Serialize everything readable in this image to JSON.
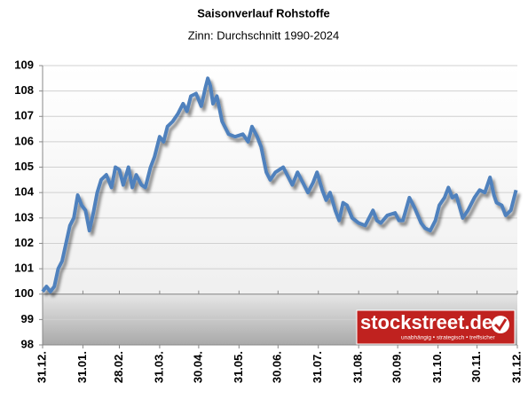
{
  "chart_data": {
    "type": "line",
    "title": "Saisonverlauf Rohstoffe",
    "subtitle": "Zinn: Durchschnitt 1990-2024",
    "x": [
      0,
      3,
      6,
      9,
      12,
      15,
      18,
      21,
      24,
      27,
      30,
      33,
      36,
      39,
      42,
      45,
      49,
      53,
      56,
      59,
      62,
      66,
      69,
      72,
      76,
      79,
      83,
      86,
      90,
      93,
      96,
      100,
      104,
      108,
      111,
      114,
      118,
      122,
      125,
      127,
      129,
      131,
      134,
      138,
      143,
      148,
      154,
      158,
      161,
      165,
      168,
      172,
      175,
      179,
      185,
      189,
      192,
      196,
      199,
      204,
      208,
      211,
      215,
      218,
      221,
      225,
      228,
      231,
      234,
      238,
      243,
      248,
      251,
      254,
      257,
      260,
      265,
      271,
      274,
      277,
      282,
      286,
      291,
      294,
      298,
      302,
      305,
      309,
      312,
      315,
      318,
      323,
      327,
      332,
      336,
      340,
      344,
      347,
      349,
      353,
      356,
      360,
      364
    ],
    "series": [
      {
        "name": "Zinn",
        "color": "#4f81bd",
        "values": [
          100.1,
          100.3,
          100.1,
          100.3,
          101.0,
          101.3,
          102.0,
          102.7,
          103.0,
          103.9,
          103.5,
          103.3,
          102.5,
          103.2,
          104.0,
          104.5,
          104.7,
          104.2,
          105.0,
          104.9,
          104.3,
          105.0,
          104.2,
          104.7,
          104.3,
          104.2,
          105.0,
          105.4,
          106.2,
          106.0,
          106.6,
          106.8,
          107.1,
          107.5,
          107.2,
          107.8,
          107.9,
          107.4,
          108.1,
          108.5,
          108.2,
          107.5,
          107.8,
          106.8,
          106.3,
          106.2,
          106.3,
          106.0,
          106.6,
          106.2,
          105.8,
          104.8,
          104.5,
          104.8,
          105.0,
          104.6,
          104.3,
          104.8,
          104.5,
          104.0,
          104.4,
          104.8,
          104.1,
          103.7,
          104.0,
          103.3,
          102.9,
          103.6,
          103.5,
          103.0,
          102.8,
          102.7,
          103.0,
          103.3,
          102.9,
          102.8,
          103.1,
          103.2,
          102.9,
          102.9,
          103.8,
          103.4,
          102.8,
          102.6,
          102.5,
          102.9,
          103.5,
          103.8,
          104.2,
          103.8,
          103.9,
          103.0,
          103.3,
          103.8,
          104.1,
          104.0,
          104.6,
          103.9,
          103.6,
          103.5,
          103.1,
          103.3,
          104.1
        ]
      }
    ],
    "xlim": [
      0,
      365
    ],
    "xticks": [
      {
        "value": 0,
        "label": "31.12."
      },
      {
        "value": 31,
        "label": "31.01."
      },
      {
        "value": 59,
        "label": "28.02."
      },
      {
        "value": 90,
        "label": "31.03."
      },
      {
        "value": 120,
        "label": "30.04."
      },
      {
        "value": 151,
        "label": "31.05."
      },
      {
        "value": 181,
        "label": "30.06."
      },
      {
        "value": 212,
        "label": "31.07."
      },
      {
        "value": 243,
        "label": "31.08."
      },
      {
        "value": 273,
        "label": "30.09."
      },
      {
        "value": 304,
        "label": "31.10."
      },
      {
        "value": 334,
        "label": "30.11."
      },
      {
        "value": 365,
        "label": "31.12."
      }
    ],
    "ylim": [
      98,
      109
    ],
    "yticks": [
      98,
      99,
      100,
      101,
      102,
      103,
      104,
      105,
      106,
      107,
      108,
      109
    ],
    "baseline": 100,
    "grid": true
  },
  "logo": {
    "text": "stockstreet.de",
    "tagline": "unabhängig • strategisch • treffsicher"
  }
}
